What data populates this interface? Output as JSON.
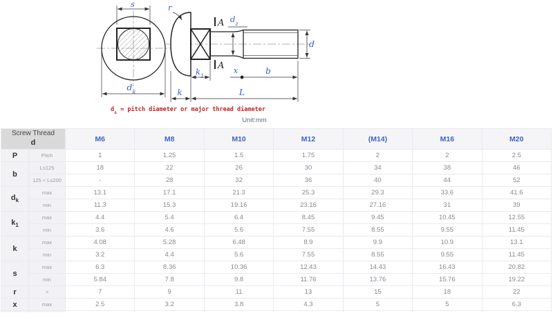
{
  "drawing": {
    "labels": {
      "s": "s",
      "dk_main": "d",
      "dk_sub": "k",
      "r": "r",
      "a_top": "A",
      "a_bottom": "A",
      "dz_main": "d",
      "dz_sub": "z",
      "d": "d",
      "k1_main": "k",
      "k1_sub": "1",
      "k": "k",
      "x": "x",
      "b": "b",
      "L": "L"
    },
    "note": {
      "prefix": "d",
      "sub": "s",
      "rest": " ≈ pitch diameter or major thread diameter"
    },
    "unit": "Unit:mm"
  },
  "table": {
    "corner": {
      "line1": "Screw Thread",
      "line2": "d"
    },
    "columns": [
      "M6",
      "M8",
      "M10",
      "M12",
      "(M14)",
      "M16",
      "M20"
    ],
    "row_groups": [
      {
        "symbol": "P",
        "symbol_sub": "",
        "rows": [
          {
            "label": "Pitch",
            "values": [
              "1",
              "1.25",
              "1.5",
              "1.75",
              "2",
              "2",
              "2.5"
            ]
          }
        ]
      },
      {
        "symbol": "b",
        "symbol_sub": "",
        "rows": [
          {
            "label": "L≤125",
            "values": [
              "18",
              "22",
              "26",
              "30",
              "34",
              "38",
              "46"
            ]
          },
          {
            "label": "125 < L≤200",
            "values": [
              "-",
              "28",
              "32",
              "36",
              "40",
              "44",
              "52"
            ]
          }
        ]
      },
      {
        "symbol": "d",
        "symbol_sub": "k",
        "rows": [
          {
            "label": "max",
            "values": [
              "13.1",
              "17.1",
              "21.3",
              "25.3",
              "29.3",
              "33.6",
              "41.6"
            ]
          },
          {
            "label": "min",
            "values": [
              "11.3",
              "15.3",
              "19.16",
              "23.16",
              "27.16",
              "31",
              "39"
            ]
          }
        ]
      },
      {
        "symbol": "k",
        "symbol_sub": "1",
        "rows": [
          {
            "label": "max",
            "values": [
              "4.4",
              "5.4",
              "6.4",
              "8.45",
              "9.45",
              "10.45",
              "12.55"
            ]
          },
          {
            "label": "min",
            "values": [
              "3.6",
              "4.6",
              "5.6",
              "7.55",
              "8.55",
              "9.55",
              "11.45"
            ]
          }
        ]
      },
      {
        "symbol": "k",
        "symbol_sub": "",
        "rows": [
          {
            "label": "max",
            "values": [
              "4.08",
              "5.28",
              "6.48",
              "8.9",
              "9.9",
              "10.9",
              "13.1"
            ]
          },
          {
            "label": "min",
            "values": [
              "3.2",
              "4.4",
              "5.6",
              "7.55",
              "8.55",
              "9.55",
              "11.45"
            ]
          }
        ]
      },
      {
        "symbol": "s",
        "symbol_sub": "",
        "rows": [
          {
            "label": "max",
            "values": [
              "6.3",
              "8.36",
              "10.36",
              "12.43",
              "14.43",
              "16.43",
              "20.82"
            ]
          },
          {
            "label": "min",
            "values": [
              "5.84",
              "7.8",
              "9.8",
              "11.76",
              "13.76",
              "15.76",
              "19.22"
            ]
          }
        ]
      },
      {
        "symbol": "r",
        "symbol_sub": "",
        "rows": [
          {
            "label": "≈",
            "values": [
              "7",
              "9",
              "11",
              "13",
              "15",
              "18",
              "22"
            ]
          }
        ]
      },
      {
        "symbol": "x",
        "symbol_sub": "",
        "rows": [
          {
            "label": "max",
            "values": [
              "2.5",
              "3.2",
              "3.8",
              "4.3",
              "5",
              "5",
              "6.3"
            ]
          }
        ]
      }
    ]
  },
  "colors": {
    "accent_blue": "#3e63c9",
    "dim_label_blue": "#3c5bd0",
    "note_red": "#c42222",
    "corner_gray": "#d9d9d9"
  }
}
